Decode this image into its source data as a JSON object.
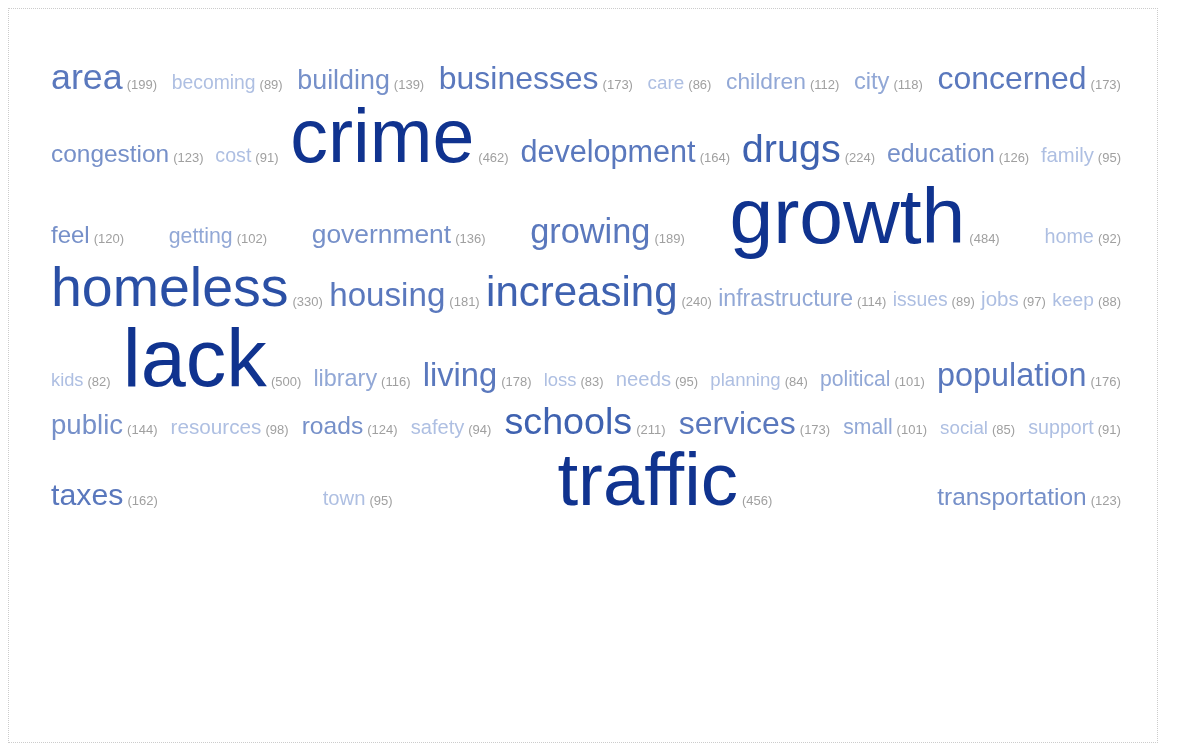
{
  "chart_data": {
    "type": "other",
    "value_labels": [
      "(199)",
      "(89)",
      "(139)",
      "(173)",
      "(86)",
      "(112)",
      "(118)",
      "(173)",
      "(123)",
      "(91)",
      "(462)",
      "(164)",
      "(224)",
      "(126)",
      "(95)",
      "(120)",
      "(102)",
      "(136)",
      "(189)",
      "(484)",
      "(92)",
      "(330)",
      "(181)",
      "(240)",
      "(114)",
      "(89)",
      "(97)",
      "(88)",
      "(82)",
      "(500)",
      "(116)",
      "(178)",
      "(83)",
      "(95)",
      "(84)",
      "(101)",
      "(176)",
      "(144)",
      "(98)",
      "(124)",
      "(94)",
      "(211)",
      "(173)",
      "(101)",
      "(85)",
      "(91)",
      "(162)",
      "(95)",
      "(456)",
      "(123)"
    ],
    "categories": [
      "area",
      "becoming",
      "building",
      "businesses",
      "care",
      "children",
      "city",
      "concerned",
      "congestion",
      "cost",
      "crime",
      "development",
      "drugs",
      "education",
      "family",
      "feel",
      "getting",
      "government",
      "growing",
      "growth",
      "home",
      "homeless",
      "housing",
      "increasing",
      "infrastructure",
      "issues",
      "jobs",
      "keep",
      "kids",
      "lack",
      "library",
      "living",
      "loss",
      "needs",
      "planning",
      "political",
      "population",
      "public",
      "resources",
      "roads",
      "safety",
      "schools",
      "services",
      "small",
      "social",
      "support",
      "taxes",
      "town",
      "traffic",
      "transportation"
    ],
    "values": [
      199,
      89,
      139,
      173,
      86,
      112,
      118,
      173,
      123,
      91,
      462,
      164,
      224,
      126,
      95,
      120,
      102,
      136,
      189,
      484,
      92,
      330,
      181,
      240,
      114,
      89,
      97,
      88,
      82,
      500,
      116,
      178,
      83,
      95,
      84,
      101,
      176,
      144,
      98,
      124,
      94,
      211,
      173,
      101,
      85,
      91,
      162,
      95,
      456,
      123
    ],
    "colors": [
      "#5a78bd",
      "#aebfe2",
      "#7690c9",
      "#5a78bd",
      "#aebfe2",
      "#92a8d6",
      "#92a8d6",
      "#5a78bd",
      "#7690c9",
      "#aebfe2",
      "#10338f",
      "#5a78bd",
      "#3f62b0",
      "#7690c9",
      "#aebfe2",
      "#7690c9",
      "#92a8d6",
      "#7690c9",
      "#5a78bd",
      "#10338f",
      "#aebfe2",
      "#2a4fa5",
      "#5a78bd",
      "#3f62b0",
      "#92a8d6",
      "#aebfe2",
      "#aebfe2",
      "#aebfe2",
      "#aebfe2",
      "#10338f",
      "#92a8d6",
      "#5a78bd",
      "#aebfe2",
      "#aebfe2",
      "#aebfe2",
      "#92a8d6",
      "#5a78bd",
      "#7690c9",
      "#aebfe2",
      "#7690c9",
      "#aebfe2",
      "#3f62b0",
      "#5a78bd",
      "#92a8d6",
      "#aebfe2",
      "#aebfe2",
      "#5a78bd",
      "#aebfe2",
      "#10338f",
      "#7690c9"
    ]
  }
}
